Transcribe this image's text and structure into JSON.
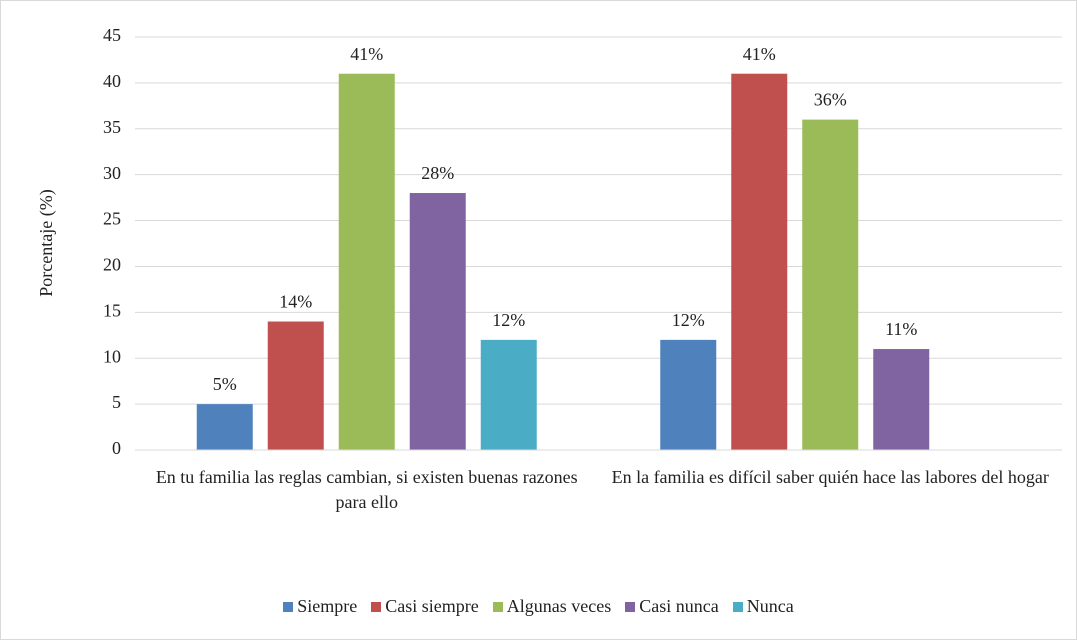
{
  "chart_data": {
    "type": "bar",
    "y_label": "Porcentaje (%)",
    "categories": [
      "En tu familia las reglas cambian, si existen buenas razones para ello",
      "En la familia es difícil saber quién hace las labores del hogar"
    ],
    "series": [
      {
        "name": "Siempre",
        "color": "#4f81bd",
        "values": [
          5,
          12
        ],
        "value_labels": [
          "5%",
          "12%"
        ]
      },
      {
        "name": "Casi siempre",
        "color": "#c0504d",
        "values": [
          14,
          41
        ],
        "value_labels": [
          "14%",
          "41%"
        ]
      },
      {
        "name": "Algunas veces",
        "color": "#9bbb59",
        "values": [
          41,
          36
        ],
        "value_labels": [
          "41%",
          "36%"
        ]
      },
      {
        "name": "Casi nunca",
        "color": "#8064a2",
        "values": [
          28,
          11
        ],
        "value_labels": [
          "28%",
          "11%"
        ]
      },
      {
        "name": "Nunca",
        "color": "#4bacc6",
        "values": [
          12,
          null
        ],
        "value_labels": [
          "12%",
          null
        ]
      }
    ],
    "ylim": [
      0,
      45
    ],
    "yticks": [
      0,
      5,
      10,
      15,
      20,
      25,
      30,
      35,
      40,
      45
    ],
    "grid": true,
    "legend": "bottom"
  }
}
